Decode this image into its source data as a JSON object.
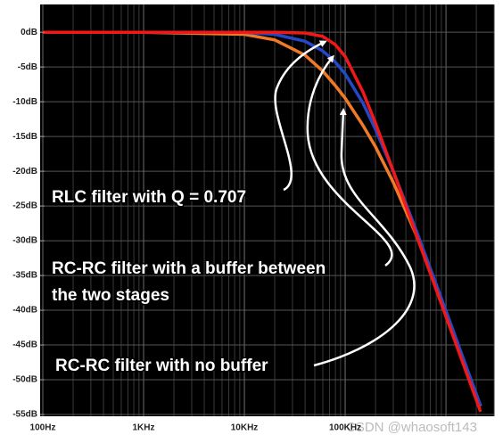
{
  "chart_data": {
    "type": "line",
    "x": [
      100,
      1000,
      10000,
      20000,
      40000,
      60000,
      80000,
      100000,
      150000,
      200000,
      300000,
      500000,
      1000000,
      2000000,
      2200000
    ],
    "series": [
      {
        "color": "#f07a28",
        "values": [
          0,
          0,
          -0.3,
          -1.1,
          -3.3,
          -5.6,
          -7.7,
          -9.5,
          -13.4,
          -16.5,
          -21.6,
          -29,
          -40.3,
          -52.1,
          -53.8
        ]
      },
      {
        "color": "#2448c8",
        "values": [
          0,
          0,
          0,
          -0.3,
          -1.3,
          -2.7,
          -4.3,
          -6,
          -10.2,
          -14,
          -20,
          -28.3,
          -40.1,
          -52.1,
          -53.7
        ]
      },
      {
        "color": "#f01818",
        "values": [
          0,
          0,
          0,
          0,
          -0.1,
          -0.6,
          -1.8,
          -3.5,
          -8.6,
          -13.1,
          -20,
          -28.9,
          -40.9,
          -52.9,
          -54.6
        ]
      }
    ],
    "xlim": [
      100,
      3000000
    ],
    "log_x": true,
    "xticks": [
      {
        "value": 100,
        "label": "100Hz"
      },
      {
        "value": 1000,
        "label": "1KHz"
      },
      {
        "value": 10000,
        "label": "10KHz"
      },
      {
        "value": 100000,
        "label": "100KHz"
      }
    ],
    "ylim": [
      -55,
      4
    ],
    "yticks": [
      {
        "value": 0,
        "label": "0dB"
      },
      {
        "value": -5,
        "label": "-5dB"
      },
      {
        "value": -10,
        "label": "-10dB"
      },
      {
        "value": -15,
        "label": "-15dB"
      },
      {
        "value": -20,
        "label": "-20dB"
      },
      {
        "value": -25,
        "label": "-25dB"
      },
      {
        "value": -30,
        "label": "-30dB"
      },
      {
        "value": -35,
        "label": "-35dB"
      },
      {
        "value": -40,
        "label": "-40dB"
      },
      {
        "value": -45,
        "label": "-45dB"
      },
      {
        "value": -50,
        "label": "-50dB"
      },
      {
        "value": -55,
        "label": "-55dB"
      }
    ],
    "grid": true,
    "annotations": [
      "RLC filter with Q = 0.707",
      "RC-RC filter with a buffer between",
      "the two stages",
      "RC-RC filter with no buffer"
    ],
    "watermark": "CSDN @whaosoft143"
  }
}
